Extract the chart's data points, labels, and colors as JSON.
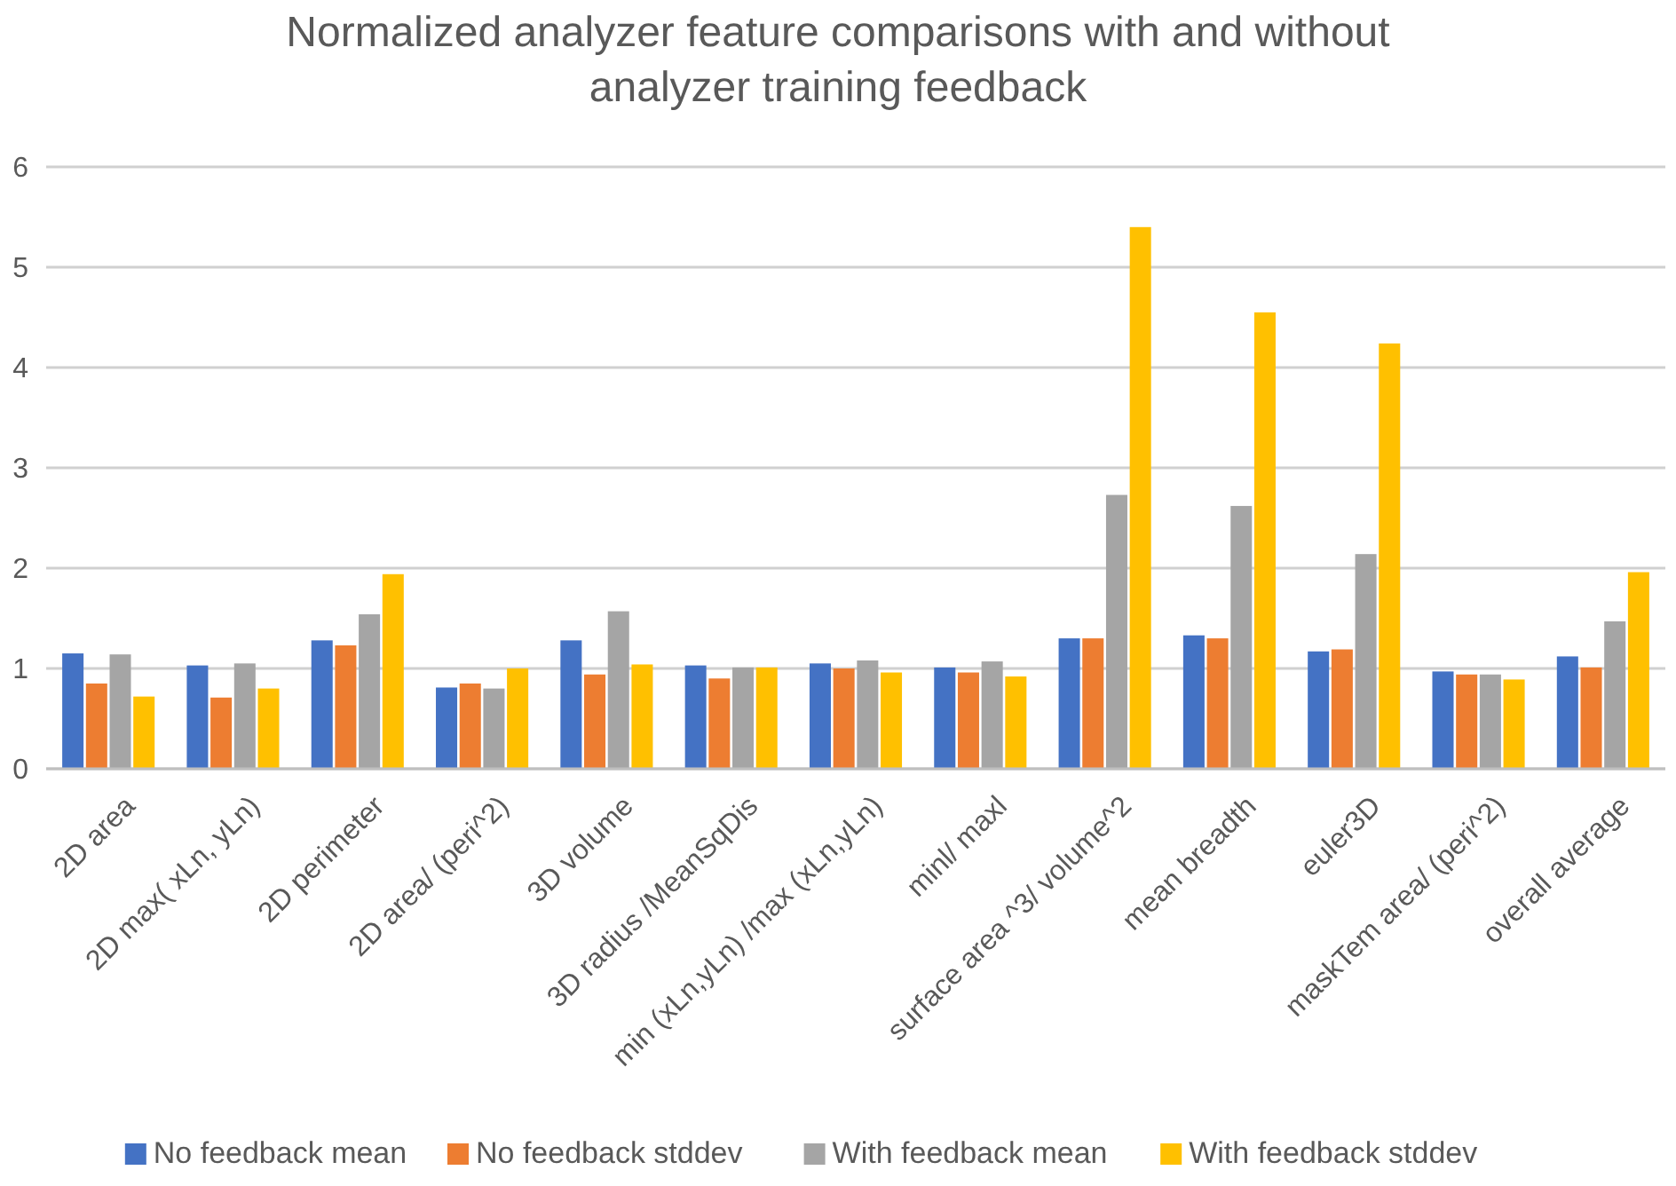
{
  "chart_data": {
    "type": "bar",
    "title": "Normalized analyzer feature comparisons with and without analyzer training feedback",
    "categories": [
      "2D area",
      "2D max( xLn, yLn)",
      "2D perimeter",
      "2D area/ (peri^2)",
      "3D volume",
      "3D radius /MeanSqDis",
      "min (xLn,yLn) /max (xLn,yLn)",
      "minl/ maxl",
      "surface area ^3/ volume^2",
      "mean breadth",
      "euler3D",
      "maskTem area/ (peri^2)",
      "overall average"
    ],
    "series": [
      {
        "name": "No feedback mean",
        "color": "#4472c4",
        "values": [
          1.15,
          1.03,
          1.28,
          0.81,
          1.28,
          1.03,
          1.05,
          1.01,
          1.3,
          1.33,
          1.17,
          0.97,
          1.12
        ]
      },
      {
        "name": "No feedback stddev",
        "color": "#ed7d31",
        "values": [
          0.85,
          0.71,
          1.23,
          0.85,
          0.94,
          0.9,
          1.0,
          0.96,
          1.3,
          1.3,
          1.19,
          0.94,
          1.01
        ]
      },
      {
        "name": "With feedback mean",
        "color": "#a5a5a5",
        "values": [
          1.14,
          1.05,
          1.54,
          0.8,
          1.57,
          1.01,
          1.08,
          1.07,
          2.73,
          2.62,
          2.14,
          0.94,
          1.47
        ]
      },
      {
        "name": "With feedback stddev",
        "color": "#ffc000",
        "values": [
          0.72,
          0.8,
          1.94,
          1.0,
          1.04,
          1.01,
          0.96,
          0.92,
          5.4,
          4.55,
          4.24,
          0.89,
          1.96
        ]
      }
    ],
    "ylim": [
      0,
      6
    ],
    "yticks": [
      0,
      1,
      2,
      3,
      4,
      5,
      6
    ],
    "grid": "y",
    "legend": "bottom"
  }
}
